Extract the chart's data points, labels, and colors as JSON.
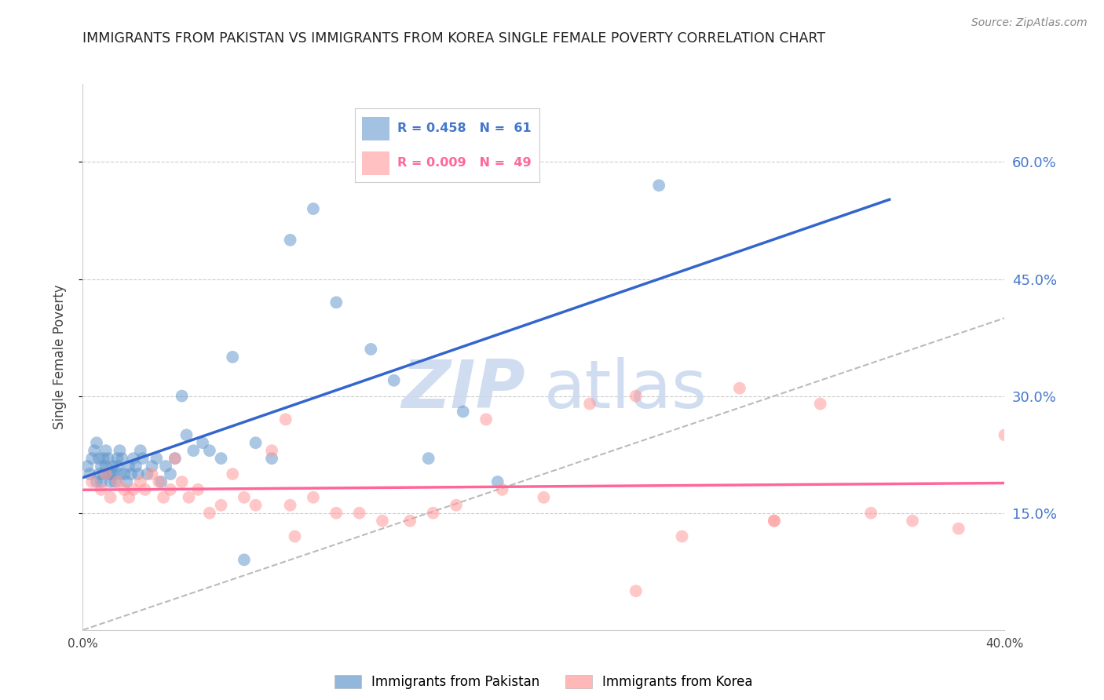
{
  "title": "IMMIGRANTS FROM PAKISTAN VS IMMIGRANTS FROM KOREA SINGLE FEMALE POVERTY CORRELATION CHART",
  "source": "Source: ZipAtlas.com",
  "ylabel": "Single Female Poverty",
  "xlim": [
    0.0,
    0.4
  ],
  "ylim": [
    0.0,
    0.7
  ],
  "yticks": [
    0.15,
    0.3,
    0.45,
    0.6
  ],
  "ytick_labels": [
    "15.0%",
    "30.0%",
    "45.0%",
    "60.0%"
  ],
  "pakistan_color": "#6699CC",
  "korea_color": "#FF9999",
  "pakistan_label": "Immigrants from Pakistan",
  "korea_label": "Immigrants from Korea",
  "pakistan_line_color": "#3366CC",
  "korea_line_color": "#FF6699",
  "diagonal_line_color": "#BBBBBB",
  "watermark_zip": "ZIP",
  "watermark_atlas": "atlas",
  "pakistan_x": [
    0.002,
    0.003,
    0.004,
    0.005,
    0.006,
    0.006,
    0.007,
    0.007,
    0.008,
    0.008,
    0.009,
    0.009,
    0.01,
    0.01,
    0.011,
    0.011,
    0.012,
    0.012,
    0.013,
    0.013,
    0.014,
    0.015,
    0.015,
    0.016,
    0.016,
    0.017,
    0.018,
    0.019,
    0.02,
    0.021,
    0.022,
    0.023,
    0.024,
    0.025,
    0.026,
    0.028,
    0.03,
    0.032,
    0.034,
    0.036,
    0.038,
    0.04,
    0.043,
    0.045,
    0.048,
    0.052,
    0.055,
    0.06,
    0.065,
    0.07,
    0.075,
    0.082,
    0.09,
    0.1,
    0.11,
    0.125,
    0.135,
    0.15,
    0.165,
    0.18,
    0.25
  ],
  "pakistan_y": [
    0.21,
    0.2,
    0.22,
    0.23,
    0.19,
    0.24,
    0.2,
    0.22,
    0.19,
    0.21,
    0.2,
    0.22,
    0.21,
    0.23,
    0.2,
    0.22,
    0.2,
    0.19,
    0.21,
    0.2,
    0.19,
    0.21,
    0.22,
    0.2,
    0.23,
    0.22,
    0.2,
    0.19,
    0.21,
    0.2,
    0.22,
    0.21,
    0.2,
    0.23,
    0.22,
    0.2,
    0.21,
    0.22,
    0.19,
    0.21,
    0.2,
    0.22,
    0.3,
    0.25,
    0.23,
    0.24,
    0.23,
    0.22,
    0.35,
    0.09,
    0.24,
    0.22,
    0.5,
    0.54,
    0.42,
    0.36,
    0.32,
    0.22,
    0.28,
    0.19,
    0.57
  ],
  "korea_x": [
    0.004,
    0.008,
    0.01,
    0.012,
    0.015,
    0.018,
    0.02,
    0.022,
    0.025,
    0.027,
    0.03,
    0.033,
    0.035,
    0.038,
    0.04,
    0.043,
    0.046,
    0.05,
    0.055,
    0.06,
    0.065,
    0.07,
    0.075,
    0.082,
    0.09,
    0.1,
    0.11,
    0.12,
    0.13,
    0.142,
    0.152,
    0.162,
    0.175,
    0.182,
    0.2,
    0.22,
    0.24,
    0.26,
    0.285,
    0.3,
    0.32,
    0.342,
    0.36,
    0.38,
    0.4,
    0.088,
    0.092,
    0.3,
    0.24
  ],
  "korea_y": [
    0.19,
    0.18,
    0.2,
    0.17,
    0.19,
    0.18,
    0.17,
    0.18,
    0.19,
    0.18,
    0.2,
    0.19,
    0.17,
    0.18,
    0.22,
    0.19,
    0.17,
    0.18,
    0.15,
    0.16,
    0.2,
    0.17,
    0.16,
    0.23,
    0.16,
    0.17,
    0.15,
    0.15,
    0.14,
    0.14,
    0.15,
    0.16,
    0.27,
    0.18,
    0.17,
    0.29,
    0.3,
    0.12,
    0.31,
    0.14,
    0.29,
    0.15,
    0.14,
    0.13,
    0.25,
    0.27,
    0.12,
    0.14,
    0.05
  ]
}
